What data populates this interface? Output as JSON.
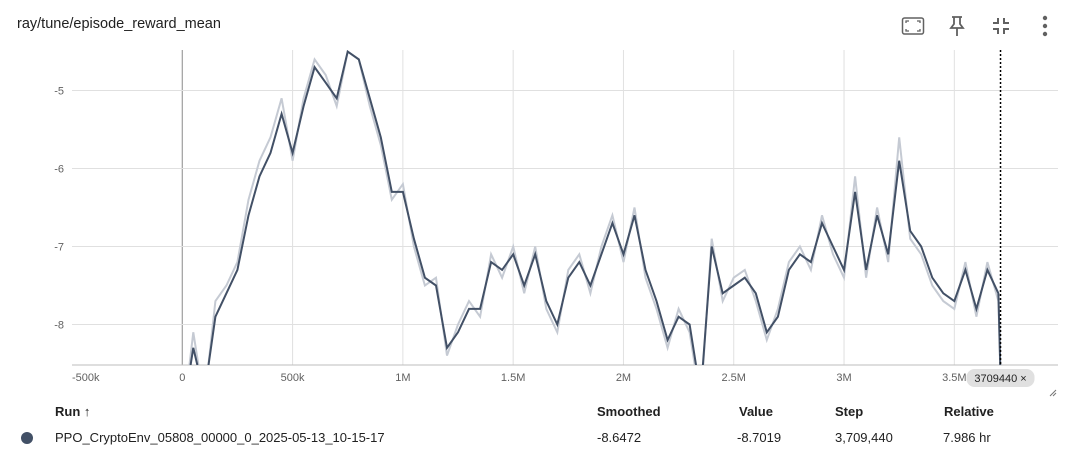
{
  "card": {
    "title": "ray/tune/episode_reward_mean",
    "toolbar": [
      {
        "name": "fit-domain-icon"
      },
      {
        "name": "pin-icon"
      },
      {
        "name": "collapse-icon"
      },
      {
        "name": "more-vert-icon"
      }
    ]
  },
  "chart_data": {
    "type": "line",
    "title": "",
    "xlabel": "",
    "ylabel": "",
    "xlim": [
      -500000,
      3970000
    ],
    "ylim": [
      -8.52,
      -4.48
    ],
    "x_ticks": [
      {
        "value": -500000,
        "label": "-500k"
      },
      {
        "value": 0,
        "label": "0"
      },
      {
        "value": 500000,
        "label": "500k"
      },
      {
        "value": 1000000,
        "label": "1M"
      },
      {
        "value": 1500000,
        "label": "1.5M"
      },
      {
        "value": 2000000,
        "label": "2M"
      },
      {
        "value": 2500000,
        "label": "2.5M"
      },
      {
        "value": 3000000,
        "label": "3M"
      },
      {
        "value": 3500000,
        "label": "3.5M"
      }
    ],
    "y_ticks": [
      {
        "value": -5,
        "label": "-5"
      },
      {
        "value": -6,
        "label": "-6"
      },
      {
        "value": -7,
        "label": "-7"
      },
      {
        "value": -8,
        "label": "-8"
      }
    ],
    "grid": true,
    "color_raw": "#c5cad3",
    "color_smoothed": "#425066",
    "color_grid": "#e0e0e0",
    "hover_step": 3709440,
    "hover_step_label": "3709440 ×",
    "series": [
      {
        "name": "PPO_CryptoEnv_05808_00000_0_2025-05-13_10-15-17",
        "x": [
          0,
          50000,
          100000,
          150000,
          200000,
          250000,
          300000,
          350000,
          400000,
          450000,
          500000,
          550000,
          600000,
          650000,
          700000,
          750000,
          800000,
          850000,
          900000,
          950000,
          1000000,
          1050000,
          1100000,
          1150000,
          1200000,
          1250000,
          1300000,
          1350000,
          1400000,
          1450000,
          1500000,
          1550000,
          1600000,
          1650000,
          1700000,
          1750000,
          1800000,
          1850000,
          1900000,
          1950000,
          2000000,
          2050000,
          2100000,
          2150000,
          2200000,
          2250000,
          2300000,
          2350000,
          2400000,
          2450000,
          2500000,
          2550000,
          2600000,
          2650000,
          2700000,
          2750000,
          2800000,
          2850000,
          2900000,
          2950000,
          3000000,
          3050000,
          3100000,
          3150000,
          3200000,
          3250000,
          3300000,
          3350000,
          3400000,
          3450000,
          3500000,
          3550000,
          3600000,
          3650000,
          3700000,
          3709440
        ],
        "smoothed": [
          -9.2,
          -8.3,
          -8.9,
          -7.9,
          -7.6,
          -7.3,
          -6.6,
          -6.1,
          -5.8,
          -5.3,
          -5.8,
          -5.2,
          -4.7,
          -4.9,
          -5.1,
          -4.5,
          -4.6,
          -5.1,
          -5.6,
          -6.3,
          -6.3,
          -6.9,
          -7.4,
          -7.5,
          -8.3,
          -8.1,
          -7.8,
          -7.8,
          -7.2,
          -7.3,
          -7.1,
          -7.5,
          -7.1,
          -7.7,
          -8.0,
          -7.4,
          -7.2,
          -7.5,
          -7.1,
          -6.7,
          -7.1,
          -6.6,
          -7.3,
          -7.7,
          -8.2,
          -7.9,
          -8.0,
          -8.9,
          -7.0,
          -7.6,
          -7.5,
          -7.4,
          -7.6,
          -8.1,
          -7.9,
          -7.3,
          -7.1,
          -7.2,
          -6.7,
          -7.0,
          -7.3,
          -6.3,
          -7.3,
          -6.6,
          -7.1,
          -5.9,
          -6.8,
          -7.0,
          -7.4,
          -7.6,
          -7.7,
          -7.3,
          -7.8,
          -7.3,
          -7.6,
          -8.65
        ],
        "values": [
          -9.3,
          -8.1,
          -9.0,
          -7.7,
          -7.5,
          -7.2,
          -6.4,
          -5.9,
          -5.6,
          -5.1,
          -5.9,
          -5.1,
          -4.6,
          -4.8,
          -5.2,
          -4.5,
          -4.6,
          -5.2,
          -5.7,
          -6.4,
          -6.2,
          -7.0,
          -7.5,
          -7.4,
          -8.4,
          -8.0,
          -7.7,
          -7.9,
          -7.1,
          -7.4,
          -7.0,
          -7.6,
          -7.0,
          -7.8,
          -8.1,
          -7.3,
          -7.1,
          -7.6,
          -7.0,
          -6.6,
          -7.2,
          -6.5,
          -7.4,
          -7.8,
          -8.3,
          -7.8,
          -8.1,
          -9.0,
          -6.9,
          -7.7,
          -7.4,
          -7.3,
          -7.7,
          -8.2,
          -7.8,
          -7.2,
          -7.0,
          -7.3,
          -6.6,
          -7.1,
          -7.4,
          -6.1,
          -7.4,
          -6.5,
          -7.2,
          -5.6,
          -6.9,
          -7.1,
          -7.5,
          -7.7,
          -7.8,
          -7.2,
          -7.9,
          -7.2,
          -7.7,
          -8.7
        ]
      }
    ]
  },
  "table": {
    "headers": {
      "run": "Run ↑",
      "smoothed": "Smoothed",
      "value": "Value",
      "step": "Step",
      "relative": "Relative"
    },
    "rows": [
      {
        "run": "PPO_CryptoEnv_05808_00000_0_2025-05-13_10-15-17",
        "smoothed": "-8.6472",
        "value": "-8.7019",
        "step": "3,709,440",
        "relative": "7.986 hr"
      }
    ]
  }
}
